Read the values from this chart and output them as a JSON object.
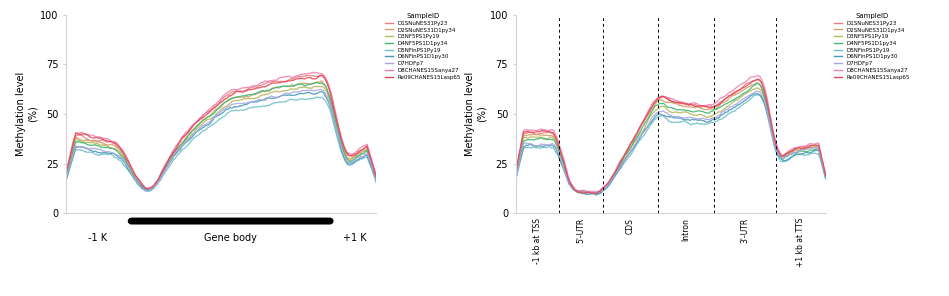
{
  "samples": [
    {
      "label": "D1SNuNES31Py23",
      "color": "#e88080"
    },
    {
      "label": "D2SNuNES31D1py34",
      "color": "#d4a06a"
    },
    {
      "label": "D3NF5PS1Py19",
      "color": "#b8b860"
    },
    {
      "label": "D4NF5PS1D1py34",
      "color": "#40b870"
    },
    {
      "label": "D5NFinPS1Py19",
      "color": "#70c0c8"
    },
    {
      "label": "D6NFinPS1D1py30",
      "color": "#4898b8"
    },
    {
      "label": "D7HDFp7",
      "color": "#a8a8e0"
    },
    {
      "label": "D8CHANES15Sanya27",
      "color": "#f080b0"
    },
    {
      "label": "Re09CHANES15Lasp65",
      "color": "#e04858"
    }
  ],
  "left_ylabel": "Methylation level\n(%)",
  "right_ylabel": "Methylation level\n(%)",
  "left_yticks": [
    0,
    25,
    50,
    75,
    100
  ],
  "right_yticks": [
    0,
    25,
    50,
    75,
    100
  ],
  "right_xticklabels": [
    "-1 kb at TSS",
    "5'-UTR",
    "CDS",
    "Intron",
    "3'-UTR",
    "+1 kb at TTS"
  ]
}
